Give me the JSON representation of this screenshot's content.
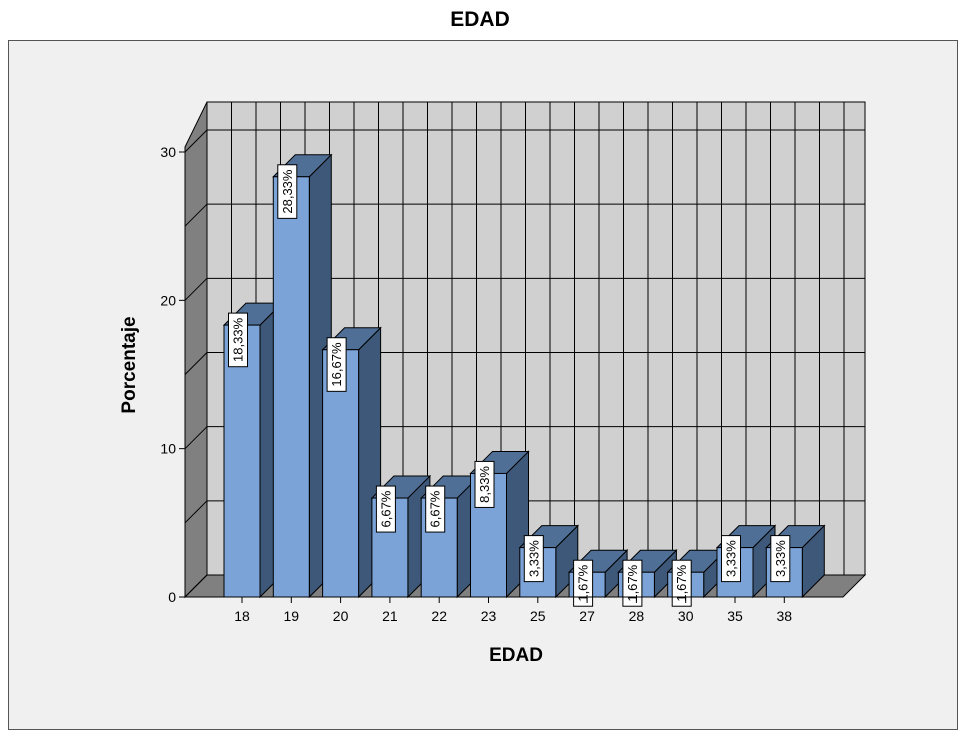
{
  "chart_data": {
    "type": "bar",
    "title": "EDAD",
    "xlabel": "EDAD",
    "ylabel": "Porcentaje",
    "categories": [
      "18",
      "19",
      "20",
      "21",
      "22",
      "23",
      "25",
      "27",
      "28",
      "30",
      "35",
      "38"
    ],
    "values": [
      18.33,
      28.33,
      16.67,
      6.67,
      6.67,
      8.33,
      3.33,
      1.67,
      1.67,
      1.67,
      3.33,
      3.33
    ],
    "data_labels": [
      "18,33%",
      "28,33%",
      "16,67%",
      "6,67%",
      "6,67%",
      "8,33%",
      "3,33%",
      "1,67%",
      "1,67%",
      "1,67%",
      "3,33%",
      "3,33%"
    ],
    "y_ticks": [
      0,
      10,
      20,
      30
    ],
    "ylim": [
      0,
      30
    ],
    "grid": true,
    "style": "3d",
    "colors": {
      "bar_front": "#7ba3d8",
      "bar_side": "#3d5878",
      "bar_top": "#4f6f96",
      "back_wall": "#d0d0d0",
      "side_wall": "#808080",
      "floor": "#808080",
      "frame_bg": "#f0f0f0"
    }
  }
}
